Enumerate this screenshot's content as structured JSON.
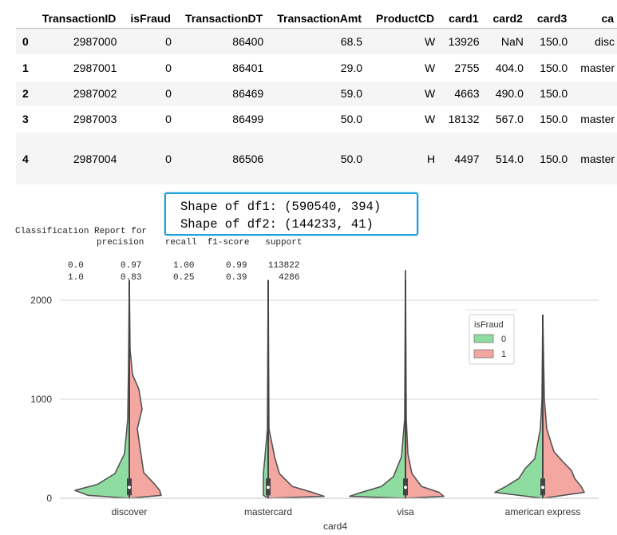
{
  "table": {
    "columns": [
      "",
      "TransactionID",
      "isFraud",
      "TransactionDT",
      "TransactionAmt",
      "ProductCD",
      "card1",
      "card2",
      "card3",
      "ca"
    ],
    "rows": [
      [
        "0",
        "2987000",
        "0",
        "86400",
        "68.5",
        "W",
        "13926",
        "NaN",
        "150.0",
        "disc"
      ],
      [
        "1",
        "2987001",
        "0",
        "86401",
        "29.0",
        "W",
        "2755",
        "404.0",
        "150.0",
        "master"
      ],
      [
        "2",
        "2987002",
        "0",
        "86469",
        "59.0",
        "W",
        "4663",
        "490.0",
        "150.0",
        ""
      ],
      [
        "3",
        "2987003",
        "0",
        "86499",
        "50.0",
        "W",
        "18132",
        "567.0",
        "150.0",
        "master"
      ],
      [
        "4",
        "2987004",
        "0",
        "86506",
        "50.0",
        "H",
        "4497",
        "514.0",
        "150.0",
        "master"
      ]
    ]
  },
  "shape_output": {
    "line1": "Shape of df1: (590540, 394)",
    "line2": "Shape of df2: (144233, 41)"
  },
  "classification_report": {
    "title": "Classification Report for",
    "header": "precision    recall  f1-score   support",
    "row0": "0.0       0.97      1.00      0.99    113822",
    "row1": "1.0       0.83      0.25      0.39      4286"
  },
  "chart_data": {
    "type": "violin",
    "xlabel": "card4",
    "ylabel": "",
    "categories": [
      "discover",
      "mastercard",
      "visa",
      "american express"
    ],
    "yticks": [
      0,
      1000,
      2000
    ],
    "ylim": [
      0,
      2000
    ],
    "split": true,
    "legend": {
      "title": "isFraud",
      "placement": "upper-right",
      "entries": [
        {
          "label": "0",
          "color": "#8fdca0"
        },
        {
          "label": "1",
          "color": "#f4a6a0"
        }
      ]
    },
    "grid": "horizontal"
  },
  "colors": {
    "class0": "#8fdca0",
    "class1": "#f4a6a0",
    "highlight": "#1ea0d8"
  }
}
